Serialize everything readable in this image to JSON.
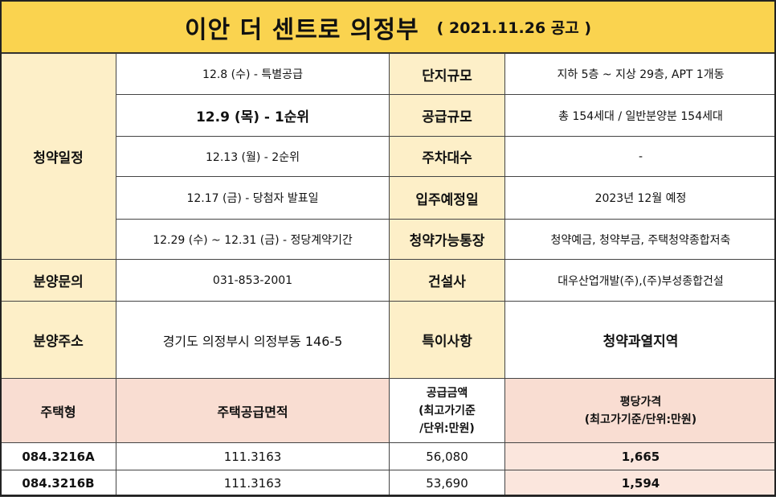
{
  "title": {
    "main": "이안 더 센트로 의정부",
    "notice": "( 2021.11.26 공고 )"
  },
  "schedule": {
    "label": "청약일정",
    "items": [
      "12.8 (수) - 특별공급",
      "12.9 (목) - 1순위",
      "12.13 (월) - 2순위",
      "12.17 (금) - 당첨자 발표일",
      "12.29 (수) ~ 12.31 (금) - 정당계약기간"
    ]
  },
  "details": [
    {
      "label": "단지규모",
      "value": "지하 5층 ~ 지상 29층, APT 1개동"
    },
    {
      "label": "공급규모",
      "value": "총 154세대 / 일반분양분 154세대"
    },
    {
      "label": "주차대수",
      "value": "-"
    },
    {
      "label": "입주예정일",
      "value": "2023년  12월 예정"
    },
    {
      "label": "청약가능통장",
      "value": "청약예금, 청약부금, 주택청약종합저축"
    }
  ],
  "inquiry": {
    "label": "분양문의",
    "value": "031-853-2001"
  },
  "builder": {
    "label": "건설사",
    "value": "대우산업개발(주),(주)부성종합건설"
  },
  "address": {
    "label": "분양주소",
    "value": "경기도  의정부시  의정부동  146-5"
  },
  "special": {
    "label": "특이사항",
    "value": "청약과열지역"
  },
  "price_table": {
    "headers": {
      "type": "주택형",
      "area": "주택공급면적",
      "supply_line1": "공급금액",
      "supply_line2": "(최고가기준",
      "supply_line3": "/단위:만원)",
      "price_line1": "평당가격",
      "price_line2": "(최고가기준/단위:만원)"
    },
    "rows": [
      {
        "type": "084.3216A",
        "area": "111.3163",
        "supply": "56,080",
        "price_per_pyeong": "1,665"
      },
      {
        "type": "084.3216B",
        "area": "111.3163",
        "supply": "53,690",
        "price_per_pyeong": "1,594"
      }
    ]
  }
}
